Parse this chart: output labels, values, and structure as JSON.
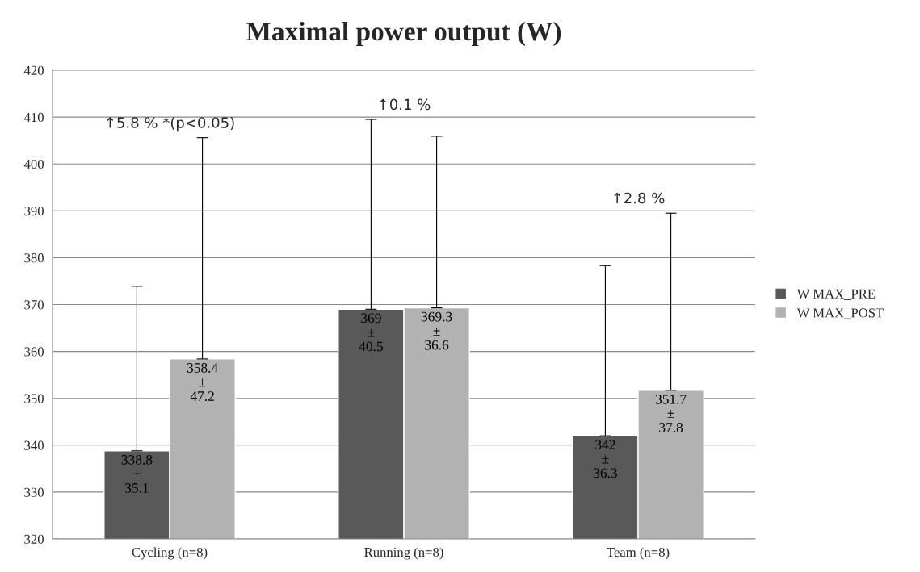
{
  "chart_data": {
    "type": "bar",
    "title": "Maximal power output (W)",
    "categories": [
      "Cycling (n=8)",
      "Running (n=8)",
      "Team (n=8)"
    ],
    "series": [
      {
        "name": "W MAX_PRE",
        "color": "#595959",
        "values": [
          338.8,
          369,
          342
        ],
        "errors": [
          [
            338.8,
            373.9
          ],
          [
            369,
            409.5
          ],
          [
            342,
            378.3
          ]
        ],
        "value_labels": [
          "338.8\n±\n35.1",
          "369\n±\n40.5",
          "342\n±\n36.3"
        ]
      },
      {
        "name": "W MAX_POST",
        "color": "#b2b2b2",
        "values": [
          358.4,
          369.3,
          351.7
        ],
        "errors": [
          [
            358.4,
            405.6
          ],
          [
            369.3,
            405.9
          ],
          [
            351.7,
            389.5
          ]
        ],
        "value_labels": [
          "358.4\n±\n47.2",
          "369.3\n±\n36.6",
          "351.7\n±\n37.8"
        ]
      }
    ],
    "ylim": [
      320,
      420
    ],
    "yticks": [
      320,
      330,
      340,
      350,
      360,
      370,
      380,
      390,
      400,
      410,
      420
    ],
    "grid": "y",
    "legend": "right",
    "marker": "square",
    "annotations": [
      "↑5.8 % *(p<0.05)",
      "↑0.1 %",
      "↑2.8 %"
    ]
  }
}
